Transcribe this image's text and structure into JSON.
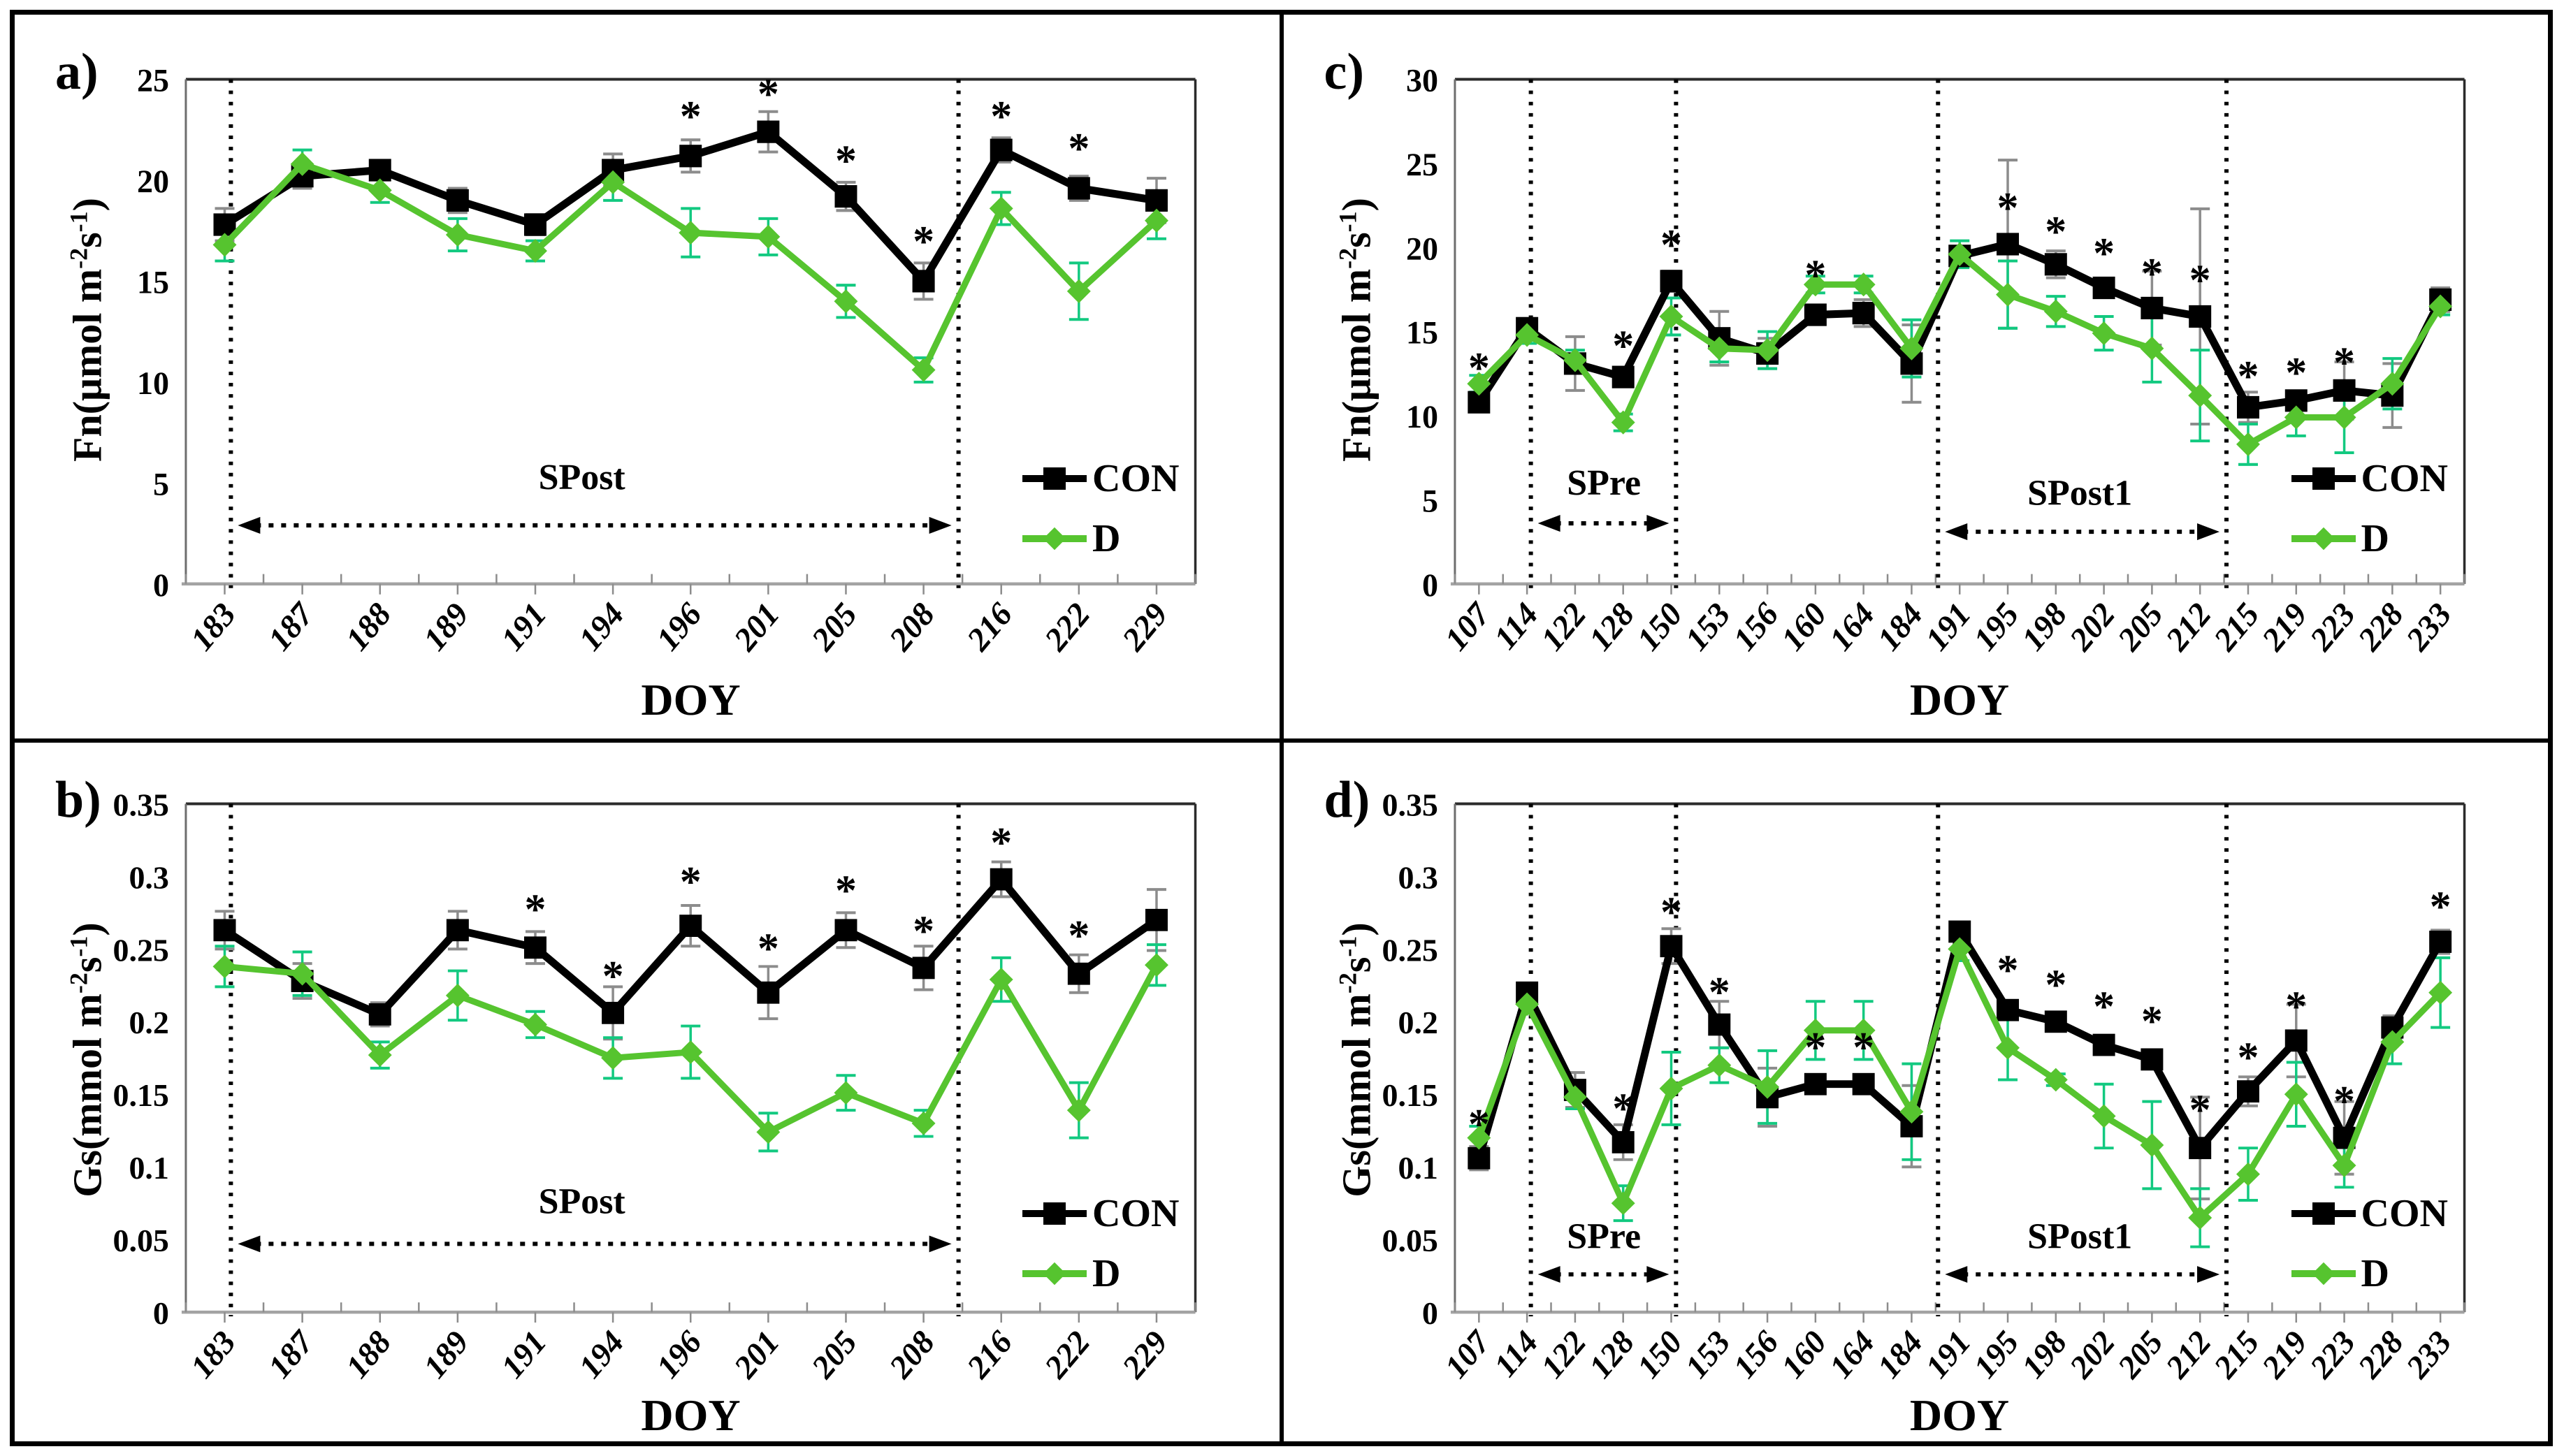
{
  "figure": {
    "x_axis_label": "DOY",
    "colors": {
      "con": "#000000",
      "con_err": "#8c8c8c",
      "d": "#56C42F",
      "d_err": "#12C980",
      "axis": "#a3a3a3",
      "spine": "#2b2b2b",
      "tick": "#8c8c8c"
    }
  },
  "chart_data": [
    {
      "id": "a",
      "type": "line",
      "panel_label": "a)",
      "xlabel": "DOY",
      "ylabel": {
        "pre": "Fn(μmol m",
        "sup1": "-2",
        "mid": "s",
        "sup2": "-1",
        "post": ")"
      },
      "ylim": [
        0,
        25
      ],
      "yticks": [
        0,
        5,
        10,
        15,
        20,
        25
      ],
      "ytick_labels": [
        "0",
        "5",
        "10",
        "15",
        "20",
        "25"
      ],
      "categories": [
        183,
        187,
        188,
        189,
        191,
        194,
        196,
        201,
        205,
        208,
        216,
        222,
        229
      ],
      "legend_position": "lower right",
      "grid": false,
      "series": [
        {
          "name": "CON",
          "marker": "square",
          "color": "#000000",
          "err_color": "#8c8c8c",
          "values": [
            17.8,
            20.2,
            20.5,
            19.0,
            17.8,
            20.5,
            21.2,
            22.4,
            19.2,
            15.0,
            21.5,
            19.6,
            19.0
          ],
          "err": [
            0.8,
            0.6,
            0.4,
            0.6,
            0.5,
            0.8,
            0.8,
            1.0,
            0.7,
            0.9,
            0.6,
            0.6,
            1.1
          ]
        },
        {
          "name": "D",
          "marker": "diamond",
          "color": "#56C42F",
          "err_color": "#12C980",
          "values": [
            16.8,
            20.8,
            19.5,
            17.3,
            16.5,
            19.9,
            17.4,
            17.2,
            14.0,
            10.6,
            18.6,
            14.5,
            18.0
          ],
          "err": [
            0.8,
            0.7,
            0.6,
            0.8,
            0.5,
            0.9,
            1.2,
            0.9,
            0.8,
            0.6,
            0.8,
            1.4,
            0.9
          ]
        }
      ],
      "asterisks": [
        {
          "doy": 196,
          "y": 23.3
        },
        {
          "doy": 201,
          "y": 24.4
        },
        {
          "doy": 205,
          "y": 21.1
        },
        {
          "doy": 208,
          "y": 17.1
        },
        {
          "doy": 216,
          "y": 23.3
        },
        {
          "doy": 222,
          "y": 21.7
        }
      ],
      "vlines_idx": [
        0.08,
        9.45
      ],
      "annotations": [
        {
          "label": "SPost",
          "x1": 0.08,
          "x2": 9.45,
          "arrow_y": 2.9,
          "label_x": 4.6,
          "label_y": 4.7
        }
      ]
    },
    {
      "id": "b",
      "type": "line",
      "panel_label": "b)",
      "xlabel": "DOY",
      "ylabel": {
        "pre": "Gs(mmol m",
        "sup1": "-2",
        "mid": "s",
        "sup2": "-1",
        "post": ")"
      },
      "ylim": [
        0,
        0.35
      ],
      "yticks": [
        0,
        0.05,
        0.1,
        0.15,
        0.2,
        0.25,
        0.3,
        0.35
      ],
      "ytick_labels": [
        "0",
        "0.05",
        "0.1",
        "0.15",
        "0.2",
        "0.25",
        "0.3",
        "0.35"
      ],
      "categories": [
        183,
        187,
        188,
        189,
        191,
        194,
        196,
        201,
        205,
        208,
        216,
        222,
        229
      ],
      "legend_position": "lower right",
      "grid": false,
      "series": [
        {
          "name": "CON",
          "marker": "square",
          "color": "#000000",
          "err_color": "#8c8c8c",
          "values": [
            0.263,
            0.228,
            0.205,
            0.263,
            0.251,
            0.206,
            0.266,
            0.22,
            0.263,
            0.237,
            0.298,
            0.233,
            0.27
          ],
          "err": [
            0.013,
            0.012,
            0.008,
            0.013,
            0.011,
            0.018,
            0.014,
            0.018,
            0.012,
            0.015,
            0.012,
            0.013,
            0.021
          ]
        },
        {
          "name": "D",
          "marker": "diamond",
          "color": "#56C42F",
          "err_color": "#12C980",
          "values": [
            0.238,
            0.233,
            0.177,
            0.218,
            0.198,
            0.175,
            0.179,
            0.124,
            0.151,
            0.13,
            0.229,
            0.139,
            0.239
          ],
          "err": [
            0.014,
            0.015,
            0.009,
            0.017,
            0.009,
            0.014,
            0.018,
            0.013,
            0.012,
            0.009,
            0.015,
            0.019,
            0.014
          ]
        }
      ],
      "asterisks": [
        {
          "doy": 191,
          "y": 0.279
        },
        {
          "doy": 194,
          "y": 0.233
        },
        {
          "doy": 196,
          "y": 0.298
        },
        {
          "doy": 201,
          "y": 0.252
        },
        {
          "doy": 205,
          "y": 0.292
        },
        {
          "doy": 208,
          "y": 0.264
        },
        {
          "doy": 216,
          "y": 0.325
        },
        {
          "doy": 222,
          "y": 0.261
        }
      ],
      "vlines_idx": [
        0.08,
        9.45
      ],
      "annotations": [
        {
          "label": "SPost",
          "x1": 0.08,
          "x2": 9.45,
          "arrow_y": 0.047,
          "label_x": 4.6,
          "label_y": 0.068
        }
      ]
    },
    {
      "id": "c",
      "type": "line",
      "panel_label": "c)",
      "xlabel": "DOY",
      "ylabel": {
        "pre": "Fn(μmol m",
        "sup1": "-2",
        "mid": "s",
        "sup2": "-1",
        "post": ")"
      },
      "ylim": [
        0,
        30
      ],
      "yticks": [
        0,
        5,
        10,
        15,
        20,
        25,
        30
      ],
      "ytick_labels": [
        "0",
        "5",
        "10",
        "15",
        "20",
        "25",
        "30"
      ],
      "categories": [
        107,
        114,
        122,
        128,
        150,
        153,
        156,
        160,
        164,
        184,
        191,
        195,
        198,
        202,
        205,
        212,
        215,
        219,
        223,
        228,
        233
      ],
      "legend_position": "lower right",
      "grid": false,
      "series": [
        {
          "name": "CON",
          "marker": "square",
          "color": "#000000",
          "err_color": "#8c8c8c",
          "values": [
            10.8,
            15.2,
            13.1,
            12.3,
            18.0,
            14.6,
            13.7,
            16.0,
            16.1,
            13.1,
            19.5,
            20.2,
            19.0,
            17.6,
            16.4,
            15.9,
            10.5,
            10.9,
            11.5,
            11.2,
            16.9
          ],
          "err": [
            0.5,
            0.4,
            1.6,
            0.5,
            0.6,
            1.6,
            0.9,
            0.5,
            0.8,
            2.3,
            0.5,
            5.0,
            0.8,
            0.4,
            2.2,
            6.4,
            0.9,
            0.5,
            1.7,
            1.9,
            0.7
          ]
        },
        {
          "name": "D",
          "marker": "diamond",
          "color": "#56C42F",
          "err_color": "#12C980",
          "values": [
            11.9,
            14.8,
            13.3,
            9.6,
            15.9,
            14.0,
            13.9,
            17.8,
            17.8,
            14.0,
            19.6,
            17.2,
            16.2,
            14.9,
            14.0,
            11.2,
            8.3,
            9.9,
            9.9,
            11.9,
            16.5
          ],
          "err": [
            0.5,
            0.5,
            0.6,
            0.5,
            1.1,
            0.8,
            1.1,
            0.5,
            0.5,
            1.7,
            0.8,
            2.0,
            0.9,
            1.0,
            2.0,
            2.7,
            1.2,
            1.1,
            2.1,
            1.5,
            0.5
          ]
        }
      ],
      "asterisks": [
        {
          "doy": 107,
          "y": 13.0
        },
        {
          "doy": 128,
          "y": 14.3
        },
        {
          "doy": 150,
          "y": 20.3
        },
        {
          "doy": 160,
          "y": 18.5
        },
        {
          "doy": 195,
          "y": 22.5
        },
        {
          "doy": 198,
          "y": 21.1
        },
        {
          "doy": 202,
          "y": 19.8
        },
        {
          "doy": 205,
          "y": 18.6
        },
        {
          "doy": 212,
          "y": 18.2
        },
        {
          "doy": 215,
          "y": 12.5
        },
        {
          "doy": 219,
          "y": 12.7
        },
        {
          "doy": 223,
          "y": 13.3
        }
      ],
      "vlines_idx": [
        1.08,
        4.1,
        9.55,
        15.55
      ],
      "annotations": [
        {
          "label": "SPre",
          "x1": 1.08,
          "x2": 4.1,
          "arrow_y": 3.6,
          "label_x": 2.6,
          "label_y": 5.3
        },
        {
          "label": "SPost1",
          "x1": 9.55,
          "x2": 15.55,
          "arrow_y": 3.1,
          "label_x": 12.5,
          "label_y": 4.7
        }
      ]
    },
    {
      "id": "d",
      "type": "line",
      "panel_label": "d)",
      "xlabel": "DOY",
      "ylabel": {
        "pre": "Gs(mmol m",
        "sup1": "-2",
        "mid": "s",
        "sup2": "-1",
        "post": ")"
      },
      "ylim": [
        0,
        0.35
      ],
      "yticks": [
        0,
        0.05,
        0.1,
        0.15,
        0.2,
        0.25,
        0.3,
        0.35
      ],
      "ytick_labels": [
        "0",
        "0.05",
        "0.1",
        "0.15",
        "0.2",
        "0.25",
        "0.3",
        "0.35"
      ],
      "categories": [
        107,
        114,
        122,
        128,
        150,
        153,
        156,
        160,
        164,
        184,
        191,
        195,
        198,
        202,
        205,
        212,
        215,
        219,
        223,
        228,
        233
      ],
      "legend_position": "lower right",
      "grid": false,
      "series": [
        {
          "name": "CON",
          "marker": "square",
          "color": "#000000",
          "err_color": "#8c8c8c",
          "values": [
            0.106,
            0.22,
            0.153,
            0.117,
            0.252,
            0.198,
            0.148,
            0.157,
            0.157,
            0.128,
            0.262,
            0.208,
            0.2,
            0.184,
            0.174,
            0.113,
            0.152,
            0.187,
            0.12,
            0.196,
            0.255
          ],
          "err": [
            0.008,
            0.006,
            0.012,
            0.012,
            0.012,
            0.016,
            0.02,
            0.006,
            0.006,
            0.028,
            0.006,
            0.006,
            0.006,
            0.006,
            0.006,
            0.035,
            0.01,
            0.025,
            0.025,
            0.008,
            0.008
          ]
        },
        {
          "name": "D",
          "marker": "diamond",
          "color": "#56C42F",
          "err_color": "#12C980",
          "values": [
            0.12,
            0.212,
            0.148,
            0.075,
            0.154,
            0.17,
            0.155,
            0.194,
            0.194,
            0.138,
            0.25,
            0.182,
            0.16,
            0.135,
            0.115,
            0.065,
            0.095,
            0.15,
            0.101,
            0.186,
            0.22
          ],
          "err": [
            0.008,
            0.006,
            0.008,
            0.012,
            0.025,
            0.012,
            0.025,
            0.02,
            0.02,
            0.033,
            0.008,
            0.022,
            0.004,
            0.022,
            0.03,
            0.02,
            0.018,
            0.022,
            0.015,
            0.015,
            0.024
          ]
        }
      ],
      "asterisks": [
        {
          "doy": 107,
          "y": 0.131
        },
        {
          "doy": 128,
          "y": 0.142
        },
        {
          "doy": 150,
          "y": 0.277
        },
        {
          "doy": 153,
          "y": 0.222
        },
        {
          "doy": 160,
          "y": 0.184
        },
        {
          "doy": 164,
          "y": 0.184
        },
        {
          "doy": 195,
          "y": 0.237
        },
        {
          "doy": 198,
          "y": 0.227
        },
        {
          "doy": 202,
          "y": 0.212
        },
        {
          "doy": 205,
          "y": 0.202
        },
        {
          "doy": 212,
          "y": 0.141
        },
        {
          "doy": 215,
          "y": 0.177
        },
        {
          "doy": 219,
          "y": 0.212
        },
        {
          "doy": 223,
          "y": 0.147
        },
        {
          "doy": 233,
          "y": 0.281
        }
      ],
      "vlines_idx": [
        1.08,
        4.1,
        9.55,
        15.55
      ],
      "annotations": [
        {
          "label": "SPre",
          "x1": 1.08,
          "x2": 4.1,
          "arrow_y": 0.026,
          "label_x": 2.6,
          "label_y": 0.044
        },
        {
          "label": "SPost1",
          "x1": 9.55,
          "x2": 15.55,
          "arrow_y": 0.026,
          "label_x": 12.5,
          "label_y": 0.044
        }
      ]
    }
  ]
}
